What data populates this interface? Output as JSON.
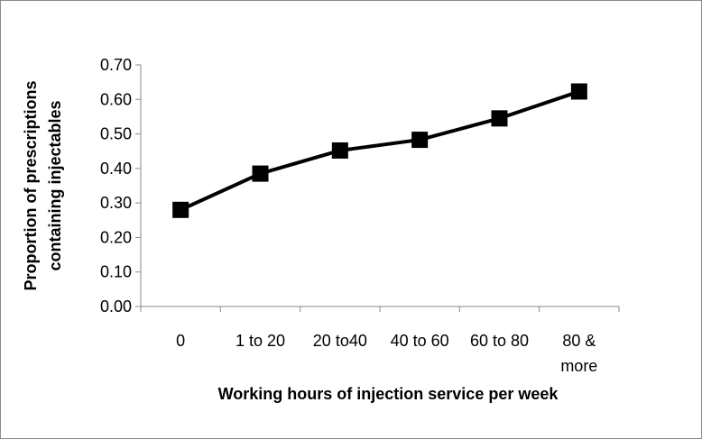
{
  "chart_data": {
    "type": "line",
    "title": "",
    "xlabel": "Working hours of injection service per week",
    "ylabel_lines": [
      "Proportion of prescriptions",
      "containing injectables"
    ],
    "categories": [
      [
        "0"
      ],
      [
        "1 to 20"
      ],
      [
        "20 to40"
      ],
      [
        "40 to 60"
      ],
      [
        "60 to 80"
      ],
      [
        "80 &",
        "more"
      ]
    ],
    "y_ticks": [
      "0.00",
      "0.10",
      "0.20",
      "0.30",
      "0.40",
      "0.50",
      "0.60",
      "0.70"
    ],
    "ylim": [
      0,
      0.7
    ],
    "series": [
      {
        "values": [
          0.28,
          0.385,
          0.452,
          0.483,
          0.545,
          0.623
        ]
      }
    ],
    "grid": false,
    "legend": "none",
    "line_color": "#000000",
    "marker": "square"
  }
}
